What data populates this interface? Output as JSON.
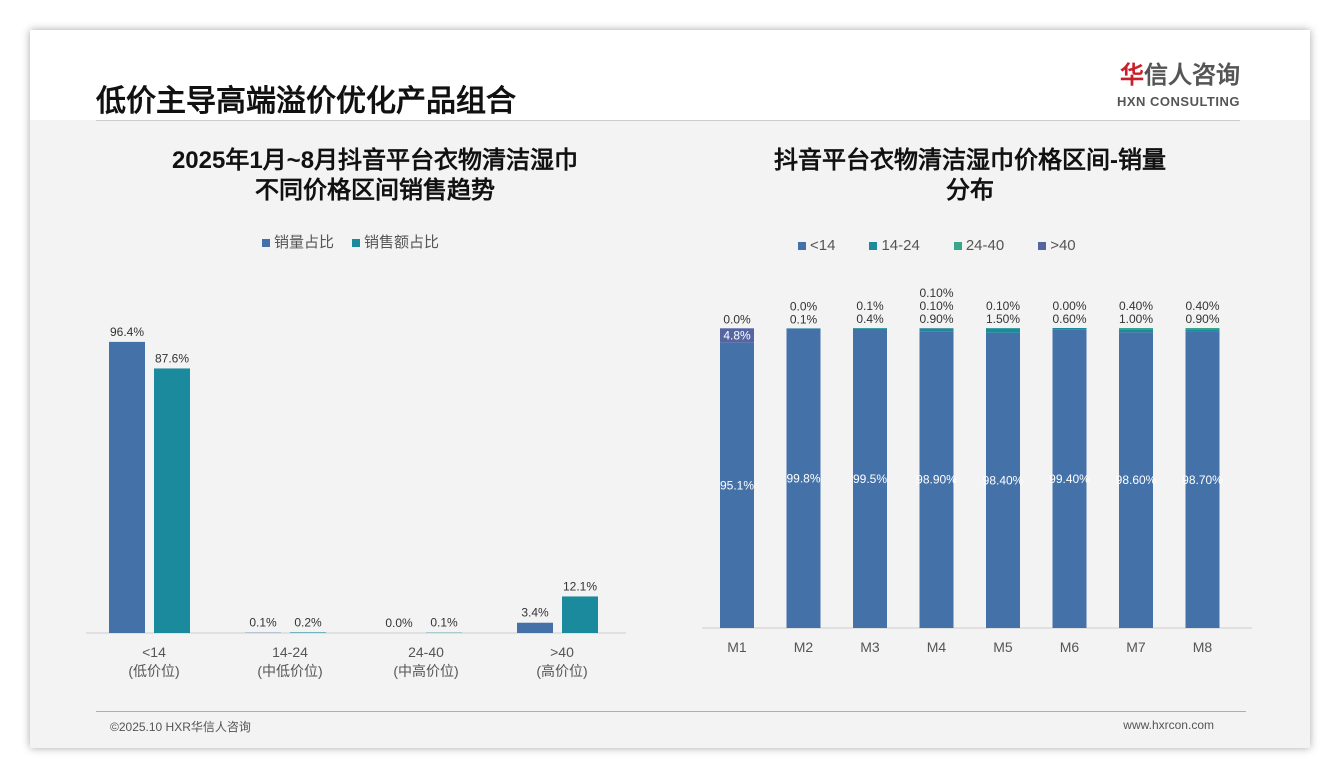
{
  "header": {
    "title": "低价主导高端溢价优化产品组合",
    "logo_cn_red": "华",
    "logo_cn": "信人咨询",
    "logo_en": "HXN CONSULTING"
  },
  "footer": {
    "left": "©2025.10 HXR华信人咨询",
    "right": "www.hxrcon.com"
  },
  "colors": {
    "c1": "#4472a8",
    "c2": "#1b8a9c",
    "c3": "#3aa58a",
    "c4": "#5565a2"
  },
  "chart_data": [
    {
      "type": "bar",
      "title_line1": "2025年1月~8月抖音平台衣物清洁湿巾",
      "title_line2": "不同价格区间销售趋势",
      "categories": [
        "<14",
        "14-24",
        "24-40",
        ">40"
      ],
      "sublabels": [
        "(低价位)",
        "(中低价位)",
        "(中高价位)",
        "(高价位)"
      ],
      "series": [
        {
          "name": "销量占比",
          "values": [
            96.4,
            0.1,
            0.0,
            3.4
          ],
          "labels": [
            "96.4%",
            "0.1%",
            "0.0%",
            "3.4%"
          ]
        },
        {
          "name": "销售额占比",
          "values": [
            87.6,
            0.2,
            0.1,
            12.1
          ],
          "labels": [
            "87.6%",
            "0.2%",
            "0.1%",
            "12.1%"
          ]
        }
      ],
      "ylim": [
        0,
        100
      ]
    },
    {
      "type": "bar",
      "stacked": true,
      "title_line1": "抖音平台衣物清洁湿巾价格区间-销量",
      "title_line2": "分布",
      "categories": [
        "M1",
        "M2",
        "M3",
        "M4",
        "M5",
        "M6",
        "M7",
        "M8"
      ],
      "series": [
        {
          "name": "<14",
          "values": [
            95.1,
            99.8,
            99.5,
            98.9,
            98.4,
            99.4,
            98.6,
            98.7
          ],
          "labels": [
            "95.1%",
            "99.8%",
            "99.5%",
            "98.90%",
            "98.40%",
            "99.40%",
            "98.60%",
            "98.70%"
          ]
        },
        {
          "name": "14-24",
          "values": [
            0.0,
            0.1,
            0.4,
            0.9,
            1.5,
            0.6,
            1.0,
            0.9
          ],
          "labels": [
            "0.0%",
            "0.1%",
            "0.4%",
            "0.90%",
            "1.50%",
            "0.60%",
            "1.00%",
            "0.90%"
          ]
        },
        {
          "name": "24-40",
          "values": [
            0,
            0.0,
            0.1,
            0.1,
            0.1,
            0.0,
            0.4,
            0.4
          ],
          "labels": [
            "",
            "0.0%",
            "0.1%",
            "0.10%",
            "0.10%",
            "0.00%",
            "0.40%",
            "0.40%"
          ]
        },
        {
          "name": ">40",
          "values": [
            4.8,
            0.0,
            0,
            0.1,
            0,
            0,
            0,
            0
          ],
          "labels": [
            "4.8%",
            "",
            "",
            "0.10%",
            "",
            "",
            "",
            ""
          ]
        }
      ],
      "ylim": [
        0,
        100
      ]
    }
  ]
}
